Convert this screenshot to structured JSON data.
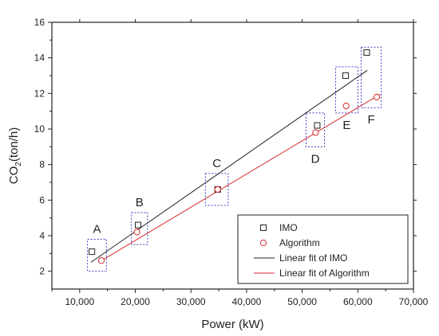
{
  "chart_data": {
    "type": "scatter",
    "xlabel": "Power (kW)",
    "ylabel": {
      "prefix": "CO",
      "sub": "2",
      "suffix": "(ton/h)"
    },
    "xlim": [
      5000,
      70000
    ],
    "ylim": [
      1,
      16
    ],
    "xticks": [
      10000,
      20000,
      30000,
      40000,
      50000,
      60000,
      70000
    ],
    "xtick_labels": [
      "10,000",
      "20,000",
      "30,000",
      "40,000",
      "50,000",
      "60,000",
      "70,000"
    ],
    "yticks": [
      2,
      4,
      6,
      8,
      10,
      12,
      14,
      16
    ],
    "ytick_labels": [
      "2",
      "4",
      "6",
      "8",
      "10",
      "12",
      "14",
      "16"
    ],
    "grid": false,
    "legend_position": "bottom-right",
    "colors": {
      "imo": "#222222",
      "algorithm": "#d62728",
      "group_box": "#3f3fbf"
    },
    "series": [
      {
        "name": "IMO",
        "marker": "square",
        "color": "#222222",
        "points": [
          {
            "x": 12200,
            "y": 3.1
          },
          {
            "x": 20500,
            "y": 4.6
          },
          {
            "x": 34800,
            "y": 6.6
          },
          {
            "x": 52700,
            "y": 10.2
          },
          {
            "x": 57800,
            "y": 13.0
          },
          {
            "x": 61600,
            "y": 14.3
          }
        ]
      },
      {
        "name": "Algorithm",
        "marker": "circle",
        "color": "#d62728",
        "points": [
          {
            "x": 13900,
            "y": 2.6
          },
          {
            "x": 20300,
            "y": 4.2
          },
          {
            "x": 34800,
            "y": 6.6
          },
          {
            "x": 52400,
            "y": 9.8
          },
          {
            "x": 57900,
            "y": 11.3
          },
          {
            "x": 63400,
            "y": 11.8
          }
        ]
      },
      {
        "name": "Linear fit of IMO",
        "type": "line",
        "color": "#222222",
        "x": [
          12000,
          61700
        ],
        "y": [
          2.5,
          13.3
        ]
      },
      {
        "name": "Linear fit of Algorithm",
        "type": "line",
        "color": "#d62728",
        "x": [
          13400,
          64000
        ],
        "y": [
          2.5,
          11.95
        ]
      }
    ],
    "groups": [
      {
        "label": "A",
        "x_range": [
          11400,
          14800
        ],
        "y_range": [
          2.0,
          3.8
        ]
      },
      {
        "label": "B",
        "x_range": [
          19300,
          22200
        ],
        "y_range": [
          3.5,
          5.3
        ]
      },
      {
        "label": "C",
        "x_range": [
          32600,
          36700
        ],
        "y_range": [
          5.7,
          7.5
        ]
      },
      {
        "label": "D",
        "x_range": [
          50700,
          54000
        ],
        "y_range": [
          9.0,
          10.9
        ]
      },
      {
        "label": "E",
        "x_range": [
          56000,
          60000
        ],
        "y_range": [
          10.9,
          13.5
        ]
      },
      {
        "label": "F",
        "x_range": [
          60600,
          64200
        ],
        "y_range": [
          11.2,
          14.6
        ]
      }
    ]
  }
}
